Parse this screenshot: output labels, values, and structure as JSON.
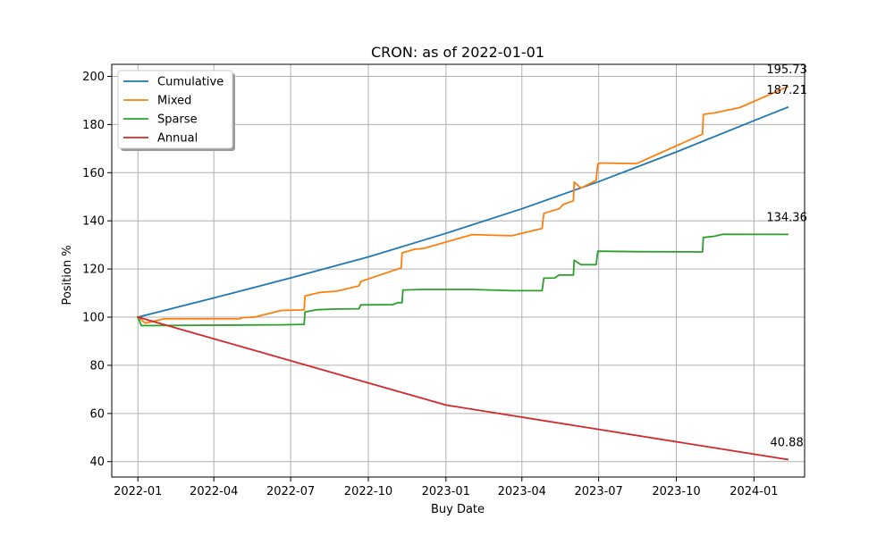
{
  "chart_data": {
    "type": "line",
    "title": "CRON: as of 2022-01-01",
    "xlabel": "Buy Date",
    "ylabel": "Position %",
    "xlim": [
      "2021-12-01",
      "2024-03-01"
    ],
    "ylim": [
      33.6,
      205
    ],
    "x_ticks": [
      "2022-01-01",
      "2022-04-01",
      "2022-07-01",
      "2022-10-01",
      "2023-01-01",
      "2023-04-01",
      "2023-07-01",
      "2023-10-01",
      "2024-01-01"
    ],
    "x_tick_labels": [
      "2022-01",
      "2022-04",
      "2022-07",
      "2022-10",
      "2023-01",
      "2023-04",
      "2023-07",
      "2023-10",
      "2024-01"
    ],
    "y_ticks": [
      40,
      60,
      80,
      100,
      120,
      140,
      160,
      180,
      200
    ],
    "y_tick_labels": [
      "40",
      "60",
      "80",
      "100",
      "120",
      "140",
      "160",
      "180",
      "200"
    ],
    "grid": true,
    "legend_position": "top-left",
    "series": [
      {
        "name": "Cumulative",
        "color": "#1f77b4",
        "x": [
          "2022-01-01",
          "2022-04-01",
          "2022-07-01",
          "2022-10-01",
          "2023-01-01",
          "2023-04-01",
          "2023-07-01",
          "2023-10-01",
          "2024-01-01",
          "2024-02-10"
        ],
        "y": [
          100.0,
          108.0,
          116.3,
          125.0,
          134.8,
          145.0,
          156.3,
          168.6,
          181.6,
          187.21
        ]
      },
      {
        "name": "Mixed",
        "color": "#ff7f0e",
        "x": [
          "2022-01-01",
          "2022-01-10",
          "2022-02-01",
          "2022-03-01",
          "2022-05-01",
          "2022-05-05",
          "2022-05-20",
          "2022-06-20",
          "2022-07-17",
          "2022-07-18",
          "2022-08-05",
          "2022-08-25",
          "2022-09-20",
          "2022-09-22",
          "2022-11-09",
          "2022-11-10",
          "2022-11-25",
          "2022-12-05",
          "2023-02-01",
          "2023-03-20",
          "2023-04-25",
          "2023-04-27",
          "2023-05-15",
          "2023-05-20",
          "2023-06-01",
          "2023-06-02",
          "2023-06-10",
          "2023-06-28",
          "2023-06-30",
          "2023-07-03",
          "2023-08-15",
          "2023-11-01",
          "2023-11-02",
          "2023-11-15",
          "2023-12-15",
          "2024-02-10"
        ],
        "y": [
          100.0,
          97.5,
          99.3,
          99.3,
          99.3,
          99.8,
          100.1,
          102.8,
          103.0,
          108.8,
          110.3,
          110.8,
          113.0,
          114.8,
          120.5,
          126.7,
          128.2,
          128.5,
          134.3,
          133.8,
          136.8,
          143.1,
          145.0,
          146.8,
          148.3,
          156.1,
          153.6,
          156.8,
          163.6,
          164.0,
          163.8,
          176.0,
          184.2,
          184.8,
          187.0,
          195.73
        ]
      },
      {
        "name": "Sparse",
        "color": "#2ca02c",
        "x": [
          "2022-01-01",
          "2022-01-05",
          "2022-06-20",
          "2022-07-17",
          "2022-07-18",
          "2022-08-01",
          "2022-08-25",
          "2022-09-20",
          "2022-09-22",
          "2022-10-30",
          "2022-11-05",
          "2022-11-10",
          "2022-11-11",
          "2022-12-05",
          "2023-02-01",
          "2023-03-20",
          "2023-04-25",
          "2023-04-27",
          "2023-05-10",
          "2023-05-15",
          "2023-06-01",
          "2023-06-02",
          "2023-06-10",
          "2023-06-28",
          "2023-06-30",
          "2023-08-15",
          "2023-11-01",
          "2023-11-02",
          "2023-11-15",
          "2023-11-25",
          "2024-02-10"
        ],
        "y": [
          100.0,
          96.5,
          96.8,
          97.0,
          102.2,
          103.1,
          103.4,
          103.5,
          105.1,
          105.2,
          106.0,
          106.0,
          111.3,
          111.5,
          111.5,
          111.0,
          111.0,
          116.2,
          116.3,
          117.5,
          117.5,
          123.6,
          121.8,
          121.8,
          127.4,
          127.2,
          127.1,
          133.1,
          133.6,
          134.4,
          134.36
        ]
      },
      {
        "name": "Annual",
        "color": "#d62728",
        "x": [
          "2022-01-01",
          "2023-01-01",
          "2024-02-10"
        ],
        "y": [
          100.0,
          63.5,
          40.88
        ]
      }
    ],
    "end_labels": [
      {
        "series": "Mixed",
        "text": "195.73",
        "x": "2024-02-10",
        "y": 195.73
      },
      {
        "series": "Cumulative",
        "text": "187.21",
        "x": "2024-02-10",
        "y": 187.21
      },
      {
        "series": "Sparse",
        "text": "134.36",
        "x": "2024-02-10",
        "y": 134.36
      },
      {
        "series": "Annual",
        "text": "40.88",
        "x": "2024-02-10",
        "y": 40.88
      }
    ]
  }
}
